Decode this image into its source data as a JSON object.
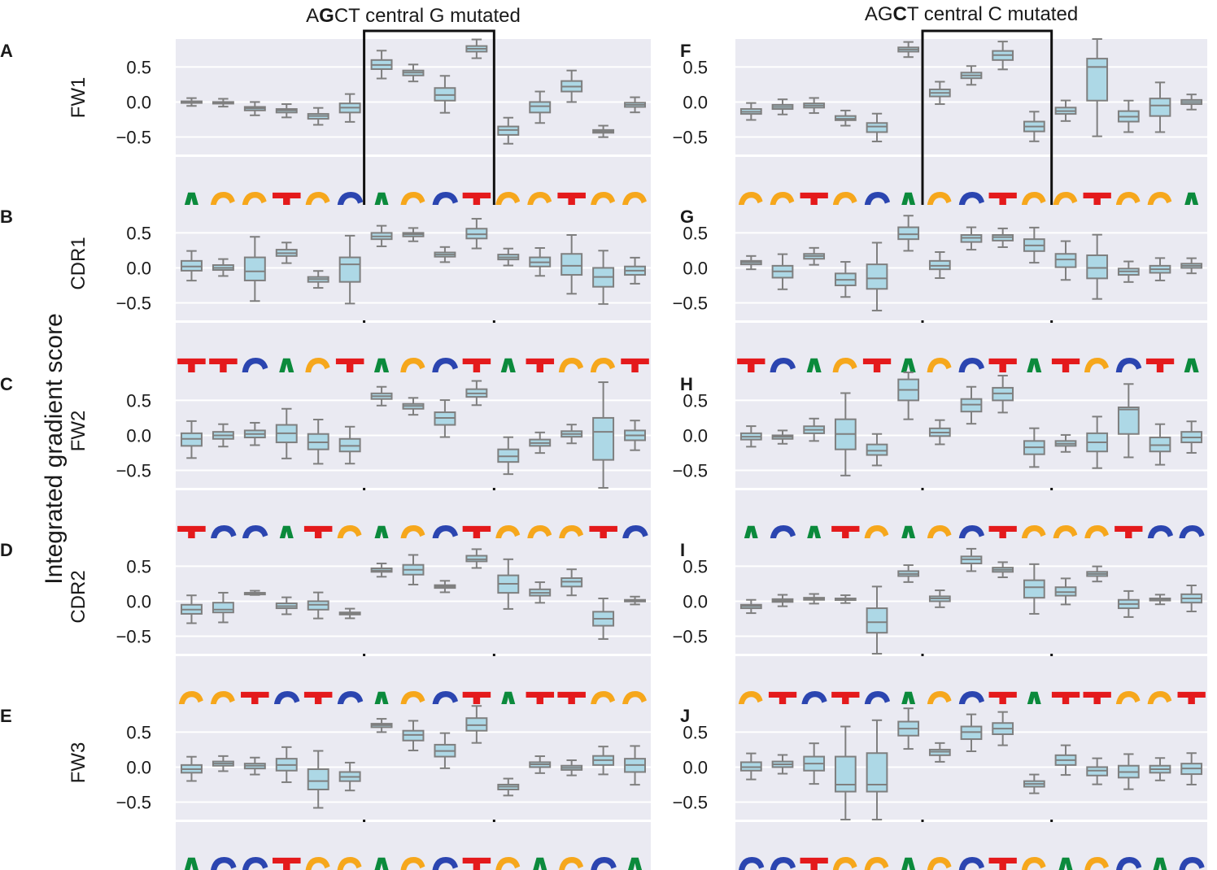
{
  "figure": {
    "y_axis_label": "Integrated gradient score",
    "colors": {
      "panel_bg": "#EAEAF2",
      "grid": "#FFFFFF",
      "box_fill": "#ADD8E6",
      "box_edge": "#7F7F7F",
      "A": "#0B8A3C",
      "G": "#F6A71C",
      "C": "#2B45B0",
      "T": "#E41A1C"
    }
  },
  "columns": [
    {
      "title_pre": "A",
      "title_bold": "G",
      "title_post": "CT central G mutated"
    },
    {
      "title_pre": "AG",
      "title_bold": "C",
      "title_post": "T central C mutated"
    }
  ],
  "chart_data": {
    "type": "box",
    "ylim": [
      -0.75,
      0.9
    ],
    "yticks": [
      0.5,
      0.0,
      -0.5
    ],
    "ytick_labels": [
      "0.5",
      "0.0",
      "−0.5"
    ],
    "grid": true,
    "panels": [
      {
        "letter": "A",
        "ylabel": "FW1",
        "col": 0,
        "logo": [
          "A",
          "G",
          "G",
          "T",
          "G",
          "C",
          "A",
          "G",
          "C",
          "T",
          "G",
          "G",
          "T",
          "G",
          "G"
        ],
        "boxes": [
          [
            -0.01,
            0.0,
            0.01
          ],
          [
            -0.02,
            -0.01,
            0.0
          ],
          [
            -0.12,
            -0.09,
            -0.07
          ],
          [
            -0.15,
            -0.12,
            -0.1
          ],
          [
            -0.24,
            -0.2,
            -0.17
          ],
          [
            -0.15,
            -0.08,
            -0.02
          ],
          [
            0.47,
            0.53,
            0.6
          ],
          [
            0.38,
            0.42,
            0.45
          ],
          [
            0.02,
            0.1,
            0.2
          ],
          [
            0.72,
            0.76,
            0.8
          ],
          [
            -0.47,
            -0.4,
            -0.35
          ],
          [
            -0.15,
            -0.06,
            0.0
          ],
          [
            0.15,
            0.22,
            0.3
          ],
          [
            -0.44,
            -0.42,
            -0.4
          ],
          [
            -0.07,
            -0.04,
            -0.01
          ]
        ]
      },
      {
        "letter": "B",
        "ylabel": "CDR1",
        "col": 0,
        "logo": [
          "T",
          "T",
          "C",
          "A",
          "G",
          "T",
          "A",
          "G",
          "C",
          "T",
          "A",
          "T",
          "G",
          "G",
          "T"
        ],
        "boxes": [
          [
            -0.04,
            0.02,
            0.1
          ],
          [
            -0.03,
            0.0,
            0.04
          ],
          [
            -0.18,
            -0.05,
            0.15
          ],
          [
            0.17,
            0.21,
            0.26
          ],
          [
            -0.2,
            -0.16,
            -0.13
          ],
          [
            -0.2,
            0.05,
            0.15
          ],
          [
            0.41,
            0.45,
            0.5
          ],
          [
            0.45,
            0.48,
            0.5
          ],
          [
            0.16,
            0.19,
            0.22
          ],
          [
            0.42,
            0.48,
            0.56
          ],
          [
            0.12,
            0.15,
            0.19
          ],
          [
            0.02,
            0.08,
            0.15
          ],
          [
            -0.1,
            0.03,
            0.2
          ],
          [
            -0.27,
            -0.13,
            0.0
          ],
          [
            -0.1,
            -0.04,
            0.02
          ]
        ]
      },
      {
        "letter": "C",
        "ylabel": "FW2",
        "col": 0,
        "logo": [
          "T",
          "C",
          "C",
          "A",
          "T",
          "G",
          "A",
          "G",
          "C",
          "T",
          "G",
          "G",
          "G",
          "T",
          "C"
        ],
        "boxes": [
          [
            -0.15,
            -0.05,
            0.03
          ],
          [
            -0.05,
            0.0,
            0.05
          ],
          [
            -0.03,
            0.02,
            0.07
          ],
          [
            -0.1,
            0.03,
            0.15
          ],
          [
            -0.2,
            -0.1,
            0.02
          ],
          [
            -0.23,
            -0.15,
            -0.05
          ],
          [
            0.52,
            0.56,
            0.6
          ],
          [
            0.38,
            0.42,
            0.45
          ],
          [
            0.15,
            0.25,
            0.33
          ],
          [
            0.55,
            0.6,
            0.66
          ],
          [
            -0.38,
            -0.3,
            -0.2
          ],
          [
            -0.15,
            -0.11,
            -0.06
          ],
          [
            -0.02,
            0.02,
            0.06
          ],
          [
            -0.35,
            0.05,
            0.25
          ],
          [
            -0.07,
            0.0,
            0.07
          ]
        ]
      },
      {
        "letter": "D",
        "ylabel": "CDR2",
        "col": 0,
        "logo": [
          "G",
          "G",
          "T",
          "C",
          "T",
          "C",
          "A",
          "G",
          "C",
          "T",
          "A",
          "T",
          "T",
          "G",
          "G"
        ],
        "boxes": [
          [
            -0.18,
            -0.12,
            -0.05
          ],
          [
            -0.16,
            -0.12,
            -0.02
          ],
          [
            0.12,
            0.12,
            0.12
          ],
          [
            -0.1,
            -0.07,
            -0.03
          ],
          [
            -0.12,
            -0.05,
            0.0
          ],
          [
            -0.19,
            -0.18,
            -0.16
          ],
          [
            0.42,
            0.44,
            0.47
          ],
          [
            0.38,
            0.45,
            0.52
          ],
          [
            0.19,
            0.21,
            0.23
          ],
          [
            0.57,
            0.6,
            0.65
          ],
          [
            0.12,
            0.25,
            0.37
          ],
          [
            0.08,
            0.12,
            0.17
          ],
          [
            0.21,
            0.28,
            0.33
          ],
          [
            -0.35,
            -0.25,
            -0.15
          ],
          [
            0.0,
            0.01,
            0.02
          ]
        ]
      },
      {
        "letter": "E",
        "ylabel": "FW3",
        "col": 0,
        "logo": [
          "A",
          "C",
          "C",
          "T",
          "G",
          "G",
          "A",
          "G",
          "C",
          "T",
          "G",
          "A",
          "G",
          "C",
          "A"
        ],
        "boxes": [
          [
            -0.08,
            -0.03,
            0.03
          ],
          [
            0.02,
            0.05,
            0.08
          ],
          [
            -0.02,
            0.02,
            0.05
          ],
          [
            -0.05,
            0.03,
            0.12
          ],
          [
            -0.32,
            -0.2,
            -0.03
          ],
          [
            -0.2,
            -0.14,
            -0.07
          ],
          [
            0.57,
            0.6,
            0.62
          ],
          [
            0.38,
            0.46,
            0.52
          ],
          [
            0.15,
            0.23,
            0.32
          ],
          [
            0.52,
            0.6,
            0.7
          ],
          [
            -0.32,
            -0.28,
            -0.25
          ],
          [
            0.0,
            0.04,
            0.07
          ],
          [
            -0.04,
            -0.01,
            0.02
          ],
          [
            0.03,
            0.1,
            0.16
          ],
          [
            -0.07,
            0.03,
            0.12
          ]
        ]
      },
      {
        "letter": "F",
        "ylabel": "",
        "col": 1,
        "logo": [
          "G",
          "G",
          "T",
          "G",
          "C",
          "A",
          "G",
          "C",
          "T",
          "G",
          "G",
          "T",
          "G",
          "G",
          "A"
        ],
        "boxes": [
          [
            -0.17,
            -0.14,
            -0.1
          ],
          [
            -0.1,
            -0.07,
            -0.04
          ],
          [
            -0.08,
            -0.05,
            -0.02
          ],
          [
            -0.26,
            -0.24,
            -0.2
          ],
          [
            -0.43,
            -0.35,
            -0.3
          ],
          [
            0.72,
            0.75,
            0.78
          ],
          [
            0.08,
            0.13,
            0.18
          ],
          [
            0.34,
            0.38,
            0.42
          ],
          [
            0.6,
            0.67,
            0.73
          ],
          [
            -0.42,
            -0.35,
            -0.28
          ],
          [
            -0.17,
            -0.13,
            -0.08
          ],
          [
            0.02,
            0.5,
            0.62
          ],
          [
            -0.28,
            -0.21,
            -0.13
          ],
          [
            -0.2,
            -0.05,
            0.05
          ],
          [
            -0.03,
            0.0,
            0.03
          ]
        ]
      },
      {
        "letter": "G",
        "ylabel": "",
        "col": 1,
        "logo": [
          "T",
          "C",
          "A",
          "G",
          "T",
          "A",
          "G",
          "C",
          "T",
          "A",
          "T",
          "G",
          "C",
          "T",
          "A"
        ],
        "boxes": [
          [
            0.05,
            0.08,
            0.1
          ],
          [
            -0.14,
            -0.05,
            0.03
          ],
          [
            0.13,
            0.17,
            0.2
          ],
          [
            -0.25,
            -0.17,
            -0.08
          ],
          [
            -0.3,
            -0.15,
            0.05
          ],
          [
            0.41,
            0.48,
            0.58
          ],
          [
            -0.02,
            0.03,
            0.1
          ],
          [
            0.37,
            0.43,
            0.47
          ],
          [
            0.39,
            0.44,
            0.47
          ],
          [
            0.24,
            0.32,
            0.41
          ],
          [
            0.01,
            0.12,
            0.2
          ],
          [
            -0.15,
            0.0,
            0.18
          ],
          [
            -0.1,
            -0.05,
            -0.01
          ],
          [
            -0.07,
            -0.02,
            0.03
          ],
          [
            0.0,
            0.03,
            0.06
          ]
        ]
      },
      {
        "letter": "H",
        "ylabel": "",
        "col": 1,
        "logo": [
          "A",
          "C",
          "A",
          "T",
          "G",
          "A",
          "G",
          "C",
          "T",
          "G",
          "G",
          "G",
          "T",
          "C",
          "C"
        ],
        "boxes": [
          [
            -0.06,
            -0.02,
            0.03
          ],
          [
            -0.05,
            -0.02,
            0.0
          ],
          [
            0.03,
            0.08,
            0.13
          ],
          [
            -0.2,
            0.02,
            0.23
          ],
          [
            -0.28,
            -0.22,
            -0.13
          ],
          [
            0.5,
            0.65,
            0.8
          ],
          [
            -0.01,
            0.04,
            0.1
          ],
          [
            0.34,
            0.44,
            0.52
          ],
          [
            0.5,
            0.6,
            0.68
          ],
          [
            -0.27,
            -0.17,
            -0.08
          ],
          [
            -0.15,
            -0.12,
            -0.08
          ],
          [
            -0.23,
            -0.1,
            0.03
          ],
          [
            0.02,
            0.37,
            0.4
          ],
          [
            -0.23,
            -0.14,
            -0.03
          ],
          [
            -0.1,
            -0.03,
            0.05
          ]
        ]
      },
      {
        "letter": "I",
        "ylabel": "",
        "col": 1,
        "logo": [
          "G",
          "T",
          "C",
          "T",
          "C",
          "A",
          "G",
          "C",
          "T",
          "A",
          "T",
          "T",
          "G",
          "G",
          "T"
        ],
        "boxes": [
          [
            -0.1,
            -0.07,
            -0.05
          ],
          [
            -0.01,
            0.01,
            0.03
          ],
          [
            0.02,
            0.04,
            0.05
          ],
          [
            0.02,
            0.03,
            0.04
          ],
          [
            -0.45,
            -0.3,
            -0.1
          ],
          [
            0.36,
            0.39,
            0.43
          ],
          [
            0.0,
            0.04,
            0.07
          ],
          [
            0.54,
            0.6,
            0.64
          ],
          [
            0.42,
            0.45,
            0.48
          ],
          [
            0.05,
            0.2,
            0.3
          ],
          [
            0.08,
            0.13,
            0.2
          ],
          [
            0.36,
            0.39,
            0.42
          ],
          [
            -0.1,
            -0.04,
            0.02
          ],
          [
            0.01,
            0.03,
            0.04
          ],
          [
            -0.02,
            0.04,
            0.1
          ]
        ]
      },
      {
        "letter": "J",
        "ylabel": "",
        "col": 1,
        "logo": [
          "C",
          "C",
          "T",
          "G",
          "G",
          "A",
          "G",
          "C",
          "T",
          "G",
          "A",
          "G",
          "C",
          "A",
          "C"
        ],
        "boxes": [
          [
            -0.05,
            0.0,
            0.07
          ],
          [
            0.0,
            0.04,
            0.08
          ],
          [
            -0.05,
            0.05,
            0.15
          ],
          [
            -0.35,
            -0.25,
            0.15
          ],
          [
            -0.35,
            -0.25,
            0.2
          ],
          [
            0.45,
            0.55,
            0.65
          ],
          [
            0.17,
            0.22,
            0.25
          ],
          [
            0.4,
            0.5,
            0.58
          ],
          [
            0.47,
            0.55,
            0.63
          ],
          [
            -0.28,
            -0.24,
            -0.2
          ],
          [
            0.03,
            0.1,
            0.17
          ],
          [
            -0.12,
            -0.05,
            0.0
          ],
          [
            -0.15,
            -0.07,
            0.02
          ],
          [
            -0.08,
            -0.03,
            0.02
          ],
          [
            -0.1,
            -0.02,
            0.05
          ]
        ]
      }
    ]
  }
}
